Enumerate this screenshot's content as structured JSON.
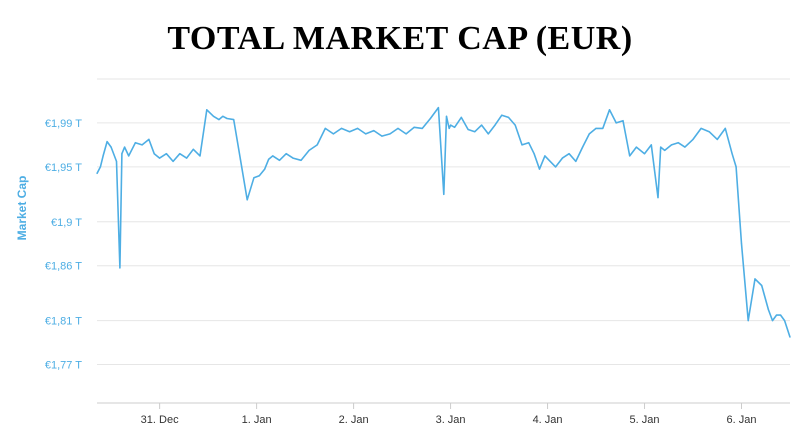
{
  "title": "TOTAL MARKET CAP (EUR)",
  "colors": {
    "series": "#4eaee4",
    "grid": "#e6e6e6",
    "axis_label": "#4eaee4",
    "x_tick": "#333333"
  },
  "chart_data": {
    "type": "line",
    "title": "TOTAL MARKET CAP (EUR)",
    "xlabel": "",
    "ylabel": "Market Cap",
    "ylim": [
      1.735,
      2.03
    ],
    "xlim": [
      "2017-12-30T08:30",
      "2018-01-06T12:00"
    ],
    "y_ticks": [
      {
        "value": 1.77,
        "label": "€1,77 T"
      },
      {
        "value": 1.81,
        "label": "€1,81 T"
      },
      {
        "value": 1.86,
        "label": "€1,86 T"
      },
      {
        "value": 1.9,
        "label": "€1,9 T"
      },
      {
        "value": 1.95,
        "label": "€1,95 T"
      },
      {
        "value": 1.99,
        "label": "€1,99 T"
      }
    ],
    "x_ticks": [
      {
        "value": "2017-12-31",
        "label": "31. Dec"
      },
      {
        "value": "2018-01-01",
        "label": "1. Jan"
      },
      {
        "value": "2018-01-02",
        "label": "2. Jan"
      },
      {
        "value": "2018-01-03",
        "label": "3. Jan"
      },
      {
        "value": "2018-01-04",
        "label": "4. Jan"
      },
      {
        "value": "2018-01-05",
        "label": "5. Jan"
      },
      {
        "value": "2018-01-06",
        "label": "6. Jan"
      }
    ],
    "grid": true,
    "legend": "none",
    "series": [
      {
        "x": [
          "2017-12-30T08:30",
          "2017-12-30T09:20",
          "2017-12-30T10:00",
          "2017-12-30T11:00",
          "2017-12-30T12:00",
          "2017-12-30T13:20",
          "2017-12-30T14:10",
          "2017-12-30T14:40",
          "2017-12-30T15:20",
          "2017-12-30T16:20",
          "2017-12-30T18:00",
          "2017-12-30T19:40",
          "2017-12-30T21:20",
          "2017-12-30T22:40",
          "2017-12-31T00:00",
          "2017-12-31T01:40",
          "2017-12-31T03:20",
          "2017-12-31T05:00",
          "2017-12-31T06:40",
          "2017-12-31T08:20",
          "2017-12-31T10:00",
          "2017-12-31T11:40",
          "2017-12-31T13:20",
          "2017-12-31T14:40",
          "2017-12-31T15:40",
          "2017-12-31T16:40",
          "2017-12-31T18:20",
          "2017-12-31T20:00",
          "2017-12-31T21:40",
          "2017-12-31T23:20",
          "2018-01-01T00:40",
          "2018-01-01T02:00",
          "2018-01-01T03:00",
          "2018-01-01T04:00",
          "2018-01-01T05:40",
          "2018-01-01T07:20",
          "2018-01-01T09:00",
          "2018-01-01T11:00",
          "2018-01-01T13:00",
          "2018-01-01T15:00",
          "2018-01-01T17:00",
          "2018-01-01T19:00",
          "2018-01-01T21:00",
          "2018-01-01T23:00",
          "2018-01-02T01:00",
          "2018-01-02T03:00",
          "2018-01-02T05:00",
          "2018-01-02T07:00",
          "2018-01-02T09:00",
          "2018-01-02T11:00",
          "2018-01-02T13:00",
          "2018-01-02T15:00",
          "2018-01-02T17:00",
          "2018-01-02T19:00",
          "2018-01-02T21:00",
          "2018-01-02T22:20",
          "2018-01-02T23:00",
          "2018-01-02T23:20",
          "2018-01-02T23:40",
          "2018-01-03T00:00",
          "2018-01-03T01:00",
          "2018-01-03T02:40",
          "2018-01-03T04:20",
          "2018-01-03T06:00",
          "2018-01-03T07:40",
          "2018-01-03T09:20",
          "2018-01-03T11:00",
          "2018-01-03T12:40",
          "2018-01-03T14:20",
          "2018-01-03T16:00",
          "2018-01-03T17:40",
          "2018-01-03T19:20",
          "2018-01-03T20:40",
          "2018-01-03T22:00",
          "2018-01-03T23:20",
          "2018-01-04T00:40",
          "2018-01-04T02:00",
          "2018-01-04T03:40",
          "2018-01-04T05:20",
          "2018-01-04T07:00",
          "2018-01-04T08:40",
          "2018-01-04T10:20",
          "2018-01-04T12:00",
          "2018-01-04T13:40",
          "2018-01-04T15:20",
          "2018-01-04T17:00",
          "2018-01-04T18:40",
          "2018-01-04T20:20",
          "2018-01-04T22:00",
          "2018-01-05T00:00",
          "2018-01-05T01:40",
          "2018-01-05T03:20",
          "2018-01-05T04:00",
          "2018-01-05T05:00",
          "2018-01-05T06:40",
          "2018-01-05T08:20",
          "2018-01-05T10:00",
          "2018-01-05T12:00",
          "2018-01-05T14:00",
          "2018-01-05T16:00",
          "2018-01-05T18:00",
          "2018-01-05T20:00",
          "2018-01-05T21:40",
          "2018-01-05T22:40",
          "2018-01-06T00:00",
          "2018-01-06T01:40",
          "2018-01-06T03:20",
          "2018-01-06T05:00",
          "2018-01-06T06:40",
          "2018-01-06T07:40",
          "2018-01-06T08:40",
          "2018-01-06T09:40",
          "2018-01-06T10:40",
          "2018-01-06T12:00"
        ],
        "values": [
          1.944,
          1.95,
          1.96,
          1.973,
          1.968,
          1.955,
          1.858,
          1.962,
          1.968,
          1.96,
          1.972,
          1.97,
          1.975,
          1.962,
          1.958,
          1.962,
          1.955,
          1.962,
          1.958,
          1.966,
          1.96,
          2.002,
          1.996,
          1.993,
          1.996,
          1.994,
          1.993,
          1.957,
          1.92,
          1.94,
          1.942,
          1.948,
          1.957,
          1.96,
          1.956,
          1.962,
          1.958,
          1.956,
          1.965,
          1.97,
          1.985,
          1.98,
          1.985,
          1.982,
          1.985,
          1.98,
          1.983,
          1.978,
          1.98,
          1.985,
          1.98,
          1.986,
          1.985,
          1.994,
          2.004,
          1.925,
          1.996,
          1.99,
          1.985,
          1.988,
          1.986,
          1.995,
          1.984,
          1.982,
          1.988,
          1.98,
          1.988,
          1.997,
          1.995,
          1.988,
          1.97,
          1.972,
          1.962,
          1.948,
          1.96,
          1.955,
          1.95,
          1.958,
          1.962,
          1.955,
          1.968,
          1.98,
          1.985,
          1.985,
          2.002,
          1.99,
          1.992,
          1.96,
          1.968,
          1.962,
          1.97,
          1.922,
          1.968,
          1.965,
          1.97,
          1.972,
          1.968,
          1.975,
          1.985,
          1.982,
          1.975,
          1.985,
          1.962,
          1.95,
          1.88,
          1.81,
          1.848,
          1.842,
          1.82,
          1.81,
          1.815,
          1.815,
          1.81,
          1.795
        ]
      }
    ]
  }
}
